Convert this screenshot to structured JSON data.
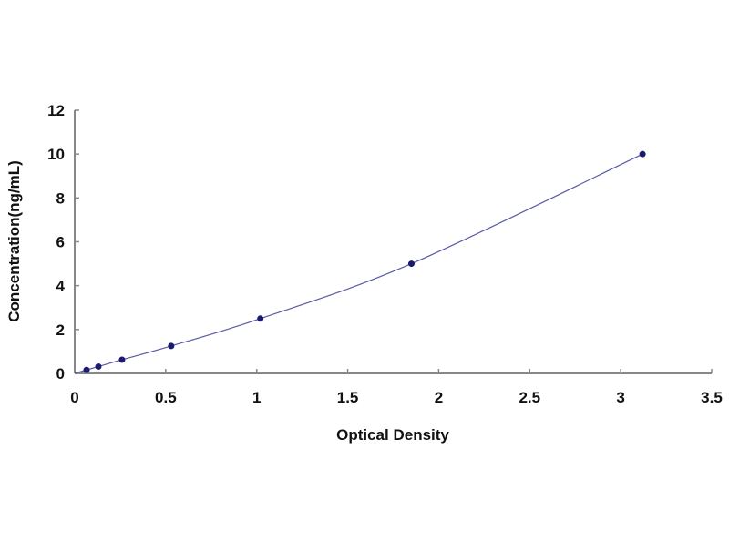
{
  "chart_data": {
    "type": "scatter",
    "title": "",
    "xlabel": "Optical Density",
    "ylabel": "Concentration(ng/mL)",
    "xlim": [
      0,
      3.5
    ],
    "ylim": [
      0,
      12
    ],
    "x_ticks": [
      "0",
      "0.5",
      "1",
      "1.5",
      "2",
      "2.5",
      "3",
      "3.5"
    ],
    "y_ticks": [
      "0",
      "2",
      "4",
      "6",
      "8",
      "10",
      "12"
    ],
    "grid": false,
    "trendline": "smooth curve",
    "colors": {
      "points": "#1a1a6e",
      "line": "#5a5aa8",
      "axis": "#888888"
    },
    "series": [
      {
        "x": [
          0.065,
          0.13,
          0.26,
          0.53,
          1.02,
          1.85,
          3.12
        ],
        "y": [
          0.156,
          0.312,
          0.625,
          1.25,
          2.5,
          5,
          10
        ]
      }
    ]
  }
}
